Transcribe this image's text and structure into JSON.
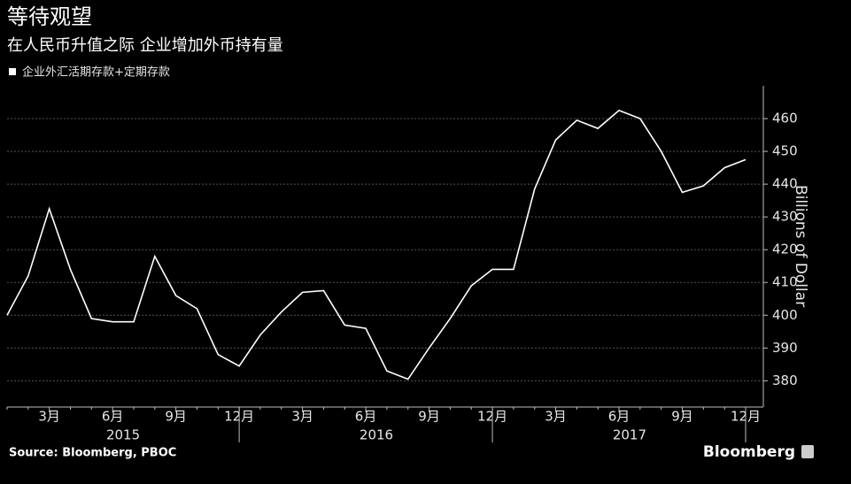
{
  "chart_data": {
    "type": "line",
    "title": "等待观望",
    "subtitle": "在人民币升值之际  企业增加外币持有量",
    "y_axis_label": "Billions of Dollar",
    "source": "Source: Bloomberg, PBOC",
    "brand": "Bloomberg",
    "categories": [
      null,
      null,
      "3月",
      null,
      null,
      "6月",
      null,
      null,
      "9月",
      null,
      null,
      "12月",
      null,
      null,
      "3月",
      null,
      null,
      "6月",
      null,
      null,
      "9月",
      null,
      null,
      "12月",
      null,
      null,
      "3月",
      null,
      null,
      "6月",
      null,
      null,
      "9月",
      null,
      null,
      "12月"
    ],
    "years": [
      "2015",
      "2016",
      "2017"
    ],
    "series": [
      {
        "name": "企业外汇活期存款+定期存款",
        "color": "#ffffff",
        "values": [
          400,
          412,
          432.5,
          414,
          399,
          398,
          398,
          418,
          406,
          402,
          388,
          384.5,
          394,
          401,
          407,
          407.5,
          397,
          396,
          383,
          380.5,
          390,
          399,
          409,
          414,
          414,
          438.5,
          453.5,
          459.5,
          457,
          462.5,
          460,
          450,
          437.5,
          439.5,
          445,
          447.5
        ]
      }
    ],
    "ylim": [
      372,
      470
    ],
    "yticks": [
      380,
      390,
      400,
      410,
      420,
      430,
      440,
      450,
      460
    ],
    "grid": true
  }
}
